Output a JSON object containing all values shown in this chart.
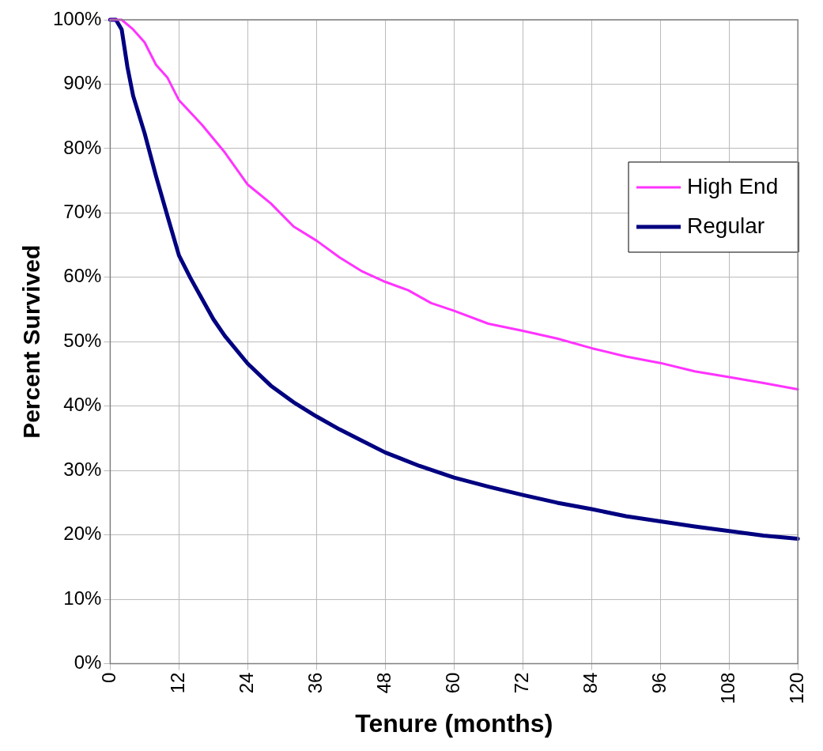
{
  "chart_data": {
    "type": "line",
    "xlabel": "Tenure (months)",
    "ylabel": "Percent Survived",
    "xlim": [
      0,
      120
    ],
    "xticks": [
      0,
      12,
      24,
      36,
      48,
      60,
      72,
      84,
      96,
      108,
      120
    ],
    "ylim": [
      0,
      100
    ],
    "yticks": [
      {
        "value": 0,
        "label": "0%"
      },
      {
        "value": 10,
        "label": "10%"
      },
      {
        "value": 20,
        "label": "20%"
      },
      {
        "value": 30,
        "label": "30%"
      },
      {
        "value": 40,
        "label": "40%"
      },
      {
        "value": 50,
        "label": "50%"
      },
      {
        "value": 60,
        "label": "60%"
      },
      {
        "value": 70,
        "label": "70%"
      },
      {
        "value": 80,
        "label": "80%"
      },
      {
        "value": 90,
        "label": "90%"
      },
      {
        "value": 100,
        "label": "100%"
      }
    ],
    "grid": true,
    "legend": "right",
    "marker": "none",
    "line_style": "solid",
    "series": [
      {
        "name": "High End",
        "color": "#ff33ff",
        "x": [
          0,
          2,
          4,
          6,
          8,
          10,
          12,
          16,
          20,
          24,
          28,
          32,
          36,
          40,
          44,
          48,
          52,
          56,
          60,
          66,
          72,
          78,
          84,
          90,
          96,
          102,
          108,
          114,
          120
        ],
        "values": [
          100,
          100,
          98.5,
          96.5,
          93,
          91,
          87.5,
          83.7,
          79.4,
          74.4,
          71.5,
          67.9,
          65.7,
          63.1,
          60.9,
          59.3,
          58,
          56,
          54.8,
          52.8,
          51.7,
          50.5,
          49,
          47.7,
          46.7,
          45.4,
          44.5,
          43.6,
          42.6
        ]
      },
      {
        "name": "Regular",
        "color": "#000080",
        "x": [
          0,
          1,
          2,
          3,
          4,
          6,
          8,
          10,
          12,
          14,
          16,
          18,
          20,
          24,
          28,
          32,
          36,
          40,
          44,
          48,
          54,
          60,
          66,
          72,
          78,
          84,
          90,
          96,
          102,
          108,
          114,
          120
        ],
        "values": [
          100,
          100,
          98.5,
          92.7,
          88.2,
          82.4,
          75.7,
          69.5,
          63.4,
          59.9,
          56.7,
          53.5,
          50.9,
          46.6,
          43.2,
          40.6,
          38.4,
          36.4,
          34.6,
          32.8,
          30.7,
          28.9,
          27.5,
          26.2,
          25,
          24,
          22.9,
          22.1,
          21.3,
          20.6,
          19.9,
          19.4
        ]
      }
    ]
  }
}
